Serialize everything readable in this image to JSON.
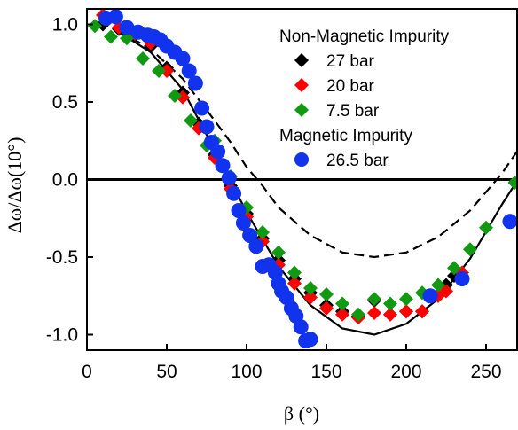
{
  "chart_data": {
    "type": "scatter",
    "xlabel": "β (°)",
    "ylabel": "Δω/Δω(10°)",
    "xlim": [
      0,
      270
    ],
    "ylim": [
      -1.1,
      1.1
    ],
    "xticks": [
      0,
      50,
      100,
      150,
      200,
      250
    ],
    "yticks": [
      1.0,
      0.5,
      0.0,
      -0.5,
      -1.0
    ],
    "xtick_labels": [
      "0",
      "50",
      "100",
      "150",
      "200",
      "250"
    ],
    "ytick_labels": [
      "1.0",
      "0.5",
      "0.0",
      "-0.5",
      "-1.0"
    ],
    "legend": {
      "position": "top-right",
      "headers": [
        "Non-Magnetic Impurity",
        "Magnetic Impurity"
      ]
    },
    "reference_line_y": 0,
    "series": [
      {
        "name": "27 bar",
        "group": "Non-Magnetic Impurity",
        "marker": "diamond",
        "color": "#000000",
        "points": [
          [
            10,
            1.0
          ],
          [
            20,
            0.97
          ],
          [
            30,
            0.93
          ],
          [
            40,
            0.86
          ],
          [
            50,
            0.72
          ],
          [
            60,
            0.56
          ],
          [
            70,
            0.36
          ],
          [
            80,
            0.16
          ],
          [
            90,
            -0.04
          ],
          [
            100,
            -0.22
          ],
          [
            110,
            -0.38
          ],
          [
            120,
            -0.52
          ],
          [
            130,
            -0.64
          ],
          [
            140,
            -0.73
          ],
          [
            150,
            -0.81
          ],
          [
            160,
            -0.85
          ],
          [
            170,
            -0.88
          ],
          [
            180,
            -0.78
          ],
          [
            190,
            -0.87
          ],
          [
            200,
            -0.85
          ],
          [
            210,
            -0.85
          ],
          [
            220,
            -0.75
          ],
          [
            225,
            -0.68
          ],
          [
            230,
            -0.62
          ]
        ]
      },
      {
        "name": "20 bar",
        "group": "Non-Magnetic Impurity",
        "marker": "diamond",
        "color": "#ff0000",
        "points": [
          [
            10,
            1.06
          ],
          [
            20,
            0.98
          ],
          [
            30,
            0.94
          ],
          [
            40,
            0.88
          ],
          [
            50,
            0.7
          ],
          [
            60,
            0.53
          ],
          [
            70,
            0.33
          ],
          [
            80,
            0.14
          ],
          [
            90,
            -0.06
          ],
          [
            100,
            -0.24
          ],
          [
            110,
            -0.4
          ],
          [
            120,
            -0.55
          ],
          [
            130,
            -0.67
          ],
          [
            140,
            -0.76
          ],
          [
            150,
            -0.83
          ],
          [
            160,
            -0.87
          ],
          [
            170,
            -0.89
          ],
          [
            180,
            -0.86
          ],
          [
            190,
            -0.87
          ],
          [
            200,
            -0.85
          ],
          [
            210,
            -0.85
          ],
          [
            220,
            -0.75
          ],
          [
            225,
            -0.72
          ],
          [
            235,
            -0.6
          ]
        ]
      },
      {
        "name": "7.5 bar",
        "group": "Non-Magnetic Impurity",
        "marker": "diamond",
        "color": "#119911",
        "points": [
          [
            5,
            0.99
          ],
          [
            15,
            0.92
          ],
          [
            25,
            0.91
          ],
          [
            35,
            0.78
          ],
          [
            45,
            0.7
          ],
          [
            55,
            0.54
          ],
          [
            65,
            0.38
          ],
          [
            75,
            0.22
          ],
          [
            80,
            0.25
          ],
          [
            90,
            0.02
          ],
          [
            100,
            -0.18
          ],
          [
            110,
            -0.34
          ],
          [
            120,
            -0.47
          ],
          [
            130,
            -0.6
          ],
          [
            140,
            -0.7
          ],
          [
            150,
            -0.74
          ],
          [
            160,
            -0.8
          ],
          [
            170,
            -0.87
          ],
          [
            180,
            -0.77
          ],
          [
            190,
            -0.8
          ],
          [
            200,
            -0.77
          ],
          [
            210,
            -0.73
          ],
          [
            220,
            -0.68
          ],
          [
            230,
            -0.57
          ],
          [
            240,
            -0.45
          ],
          [
            250,
            -0.31
          ],
          [
            268,
            -0.02
          ]
        ]
      },
      {
        "name": "26.5 bar",
        "group": "Magnetic Impurity",
        "marker": "circle",
        "color": "#1133ee",
        "points": [
          [
            12,
            1.04
          ],
          [
            18,
            1.05
          ],
          [
            25,
            0.98
          ],
          [
            32,
            0.95
          ],
          [
            38,
            0.93
          ],
          [
            42,
            0.92
          ],
          [
            46,
            0.9
          ],
          [
            50,
            0.86
          ],
          [
            55,
            0.82
          ],
          [
            60,
            0.78
          ],
          [
            64,
            0.7
          ],
          [
            68,
            0.62
          ],
          [
            72,
            0.46
          ],
          [
            75,
            0.34
          ],
          [
            78,
            0.24
          ],
          [
            82,
            0.18
          ],
          [
            85,
            0.09
          ],
          [
            89,
            0.01
          ],
          [
            92,
            -0.09
          ],
          [
            95,
            -0.2
          ],
          [
            98,
            -0.28
          ],
          [
            102,
            -0.36
          ],
          [
            106,
            -0.43
          ],
          [
            110,
            -0.56
          ],
          [
            114,
            -0.55
          ],
          [
            118,
            -0.6
          ],
          [
            120,
            -0.67
          ],
          [
            122,
            -0.72
          ],
          [
            125,
            -0.76
          ],
          [
            128,
            -0.83
          ],
          [
            131,
            -0.88
          ],
          [
            134,
            -0.95
          ],
          [
            137,
            -1.04
          ],
          [
            140,
            -1.03
          ],
          [
            215,
            -0.75
          ],
          [
            235,
            -0.64
          ],
          [
            265,
            -0.27
          ]
        ]
      }
    ],
    "curves": [
      {
        "name": "solid",
        "style": "solid",
        "color": "#000000",
        "points": [
          [
            20,
            0.95
          ],
          [
            40,
            0.82
          ],
          [
            60,
            0.58
          ],
          [
            80,
            0.19
          ],
          [
            90,
            -0.01
          ],
          [
            100,
            -0.21
          ],
          [
            120,
            -0.56
          ],
          [
            140,
            -0.81
          ],
          [
            160,
            -0.96
          ],
          [
            180,
            -1.0
          ],
          [
            200,
            -0.93
          ],
          [
            220,
            -0.77
          ],
          [
            240,
            -0.51
          ],
          [
            260,
            -0.16
          ],
          [
            270,
            0.0
          ]
        ]
      },
      {
        "name": "dashed",
        "style": "dashed",
        "color": "#000000",
        "points": [
          [
            20,
            0.96
          ],
          [
            40,
            0.84
          ],
          [
            60,
            0.65
          ],
          [
            80,
            0.38
          ],
          [
            90,
            0.24
          ],
          [
            100,
            0.08
          ],
          [
            110,
            -0.04
          ],
          [
            120,
            -0.18
          ],
          [
            140,
            -0.36
          ],
          [
            160,
            -0.47
          ],
          [
            180,
            -0.5
          ],
          [
            200,
            -0.47
          ],
          [
            220,
            -0.37
          ],
          [
            240,
            -0.2
          ],
          [
            260,
            0.04
          ],
          [
            270,
            0.19
          ]
        ]
      }
    ]
  }
}
